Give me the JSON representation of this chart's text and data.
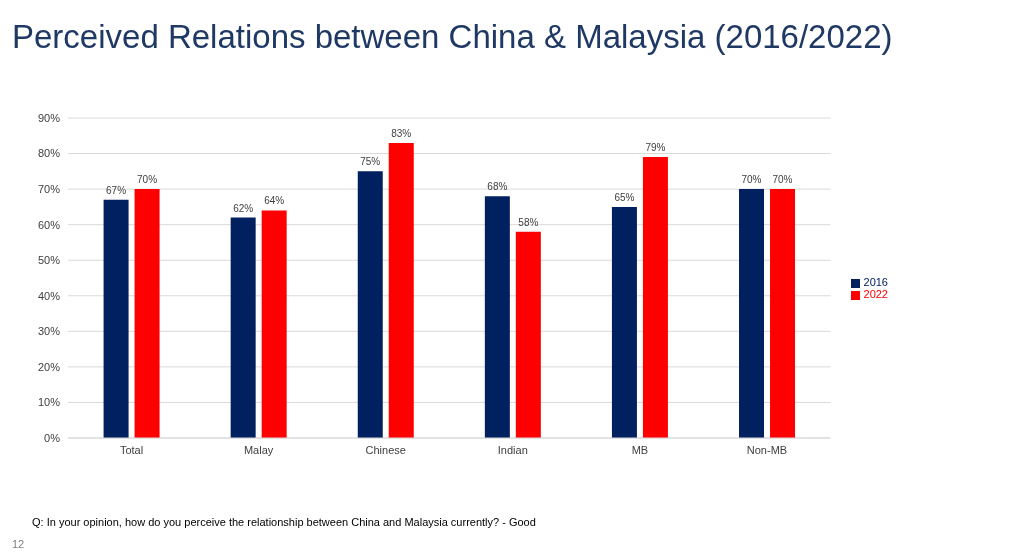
{
  "chart_data": {
    "type": "bar",
    "title": "Perceived Relations between China & Malaysia (2016/2022)",
    "categories": [
      "Total",
      "Malay",
      "Chinese",
      "Indian",
      "MB",
      "Non-MB"
    ],
    "series": [
      {
        "name": "2016",
        "color": "#002060",
        "values": [
          67,
          62,
          75,
          68,
          65,
          70
        ],
        "value_labels": [
          "67%",
          "62%",
          "75%",
          "68%",
          "65%",
          "70%"
        ]
      },
      {
        "name": "2022",
        "color": "#ff0000",
        "values": [
          70,
          64,
          83,
          58,
          79,
          70
        ],
        "value_labels": [
          "70%",
          "64%",
          "83%",
          "58%",
          "79%",
          "70%"
        ]
      }
    ],
    "ylim": [
      0,
      90
    ],
    "yticks": [
      {
        "value": 0,
        "label": "0%"
      },
      {
        "value": 10,
        "label": "10%"
      },
      {
        "value": 20,
        "label": "20%"
      },
      {
        "value": 30,
        "label": "30%"
      },
      {
        "value": 40,
        "label": "40%"
      },
      {
        "value": 50,
        "label": "50%"
      },
      {
        "value": 60,
        "label": "60%"
      },
      {
        "value": 70,
        "label": "70%"
      },
      {
        "value": 80,
        "label": "80%"
      },
      {
        "value": 90,
        "label": "90%"
      }
    ],
    "grid": "y",
    "legend": "right",
    "annotations": [
      "Q: In your opinion, how do you perceive the relationship between China and Malaysia currently? - Good",
      "12"
    ]
  }
}
